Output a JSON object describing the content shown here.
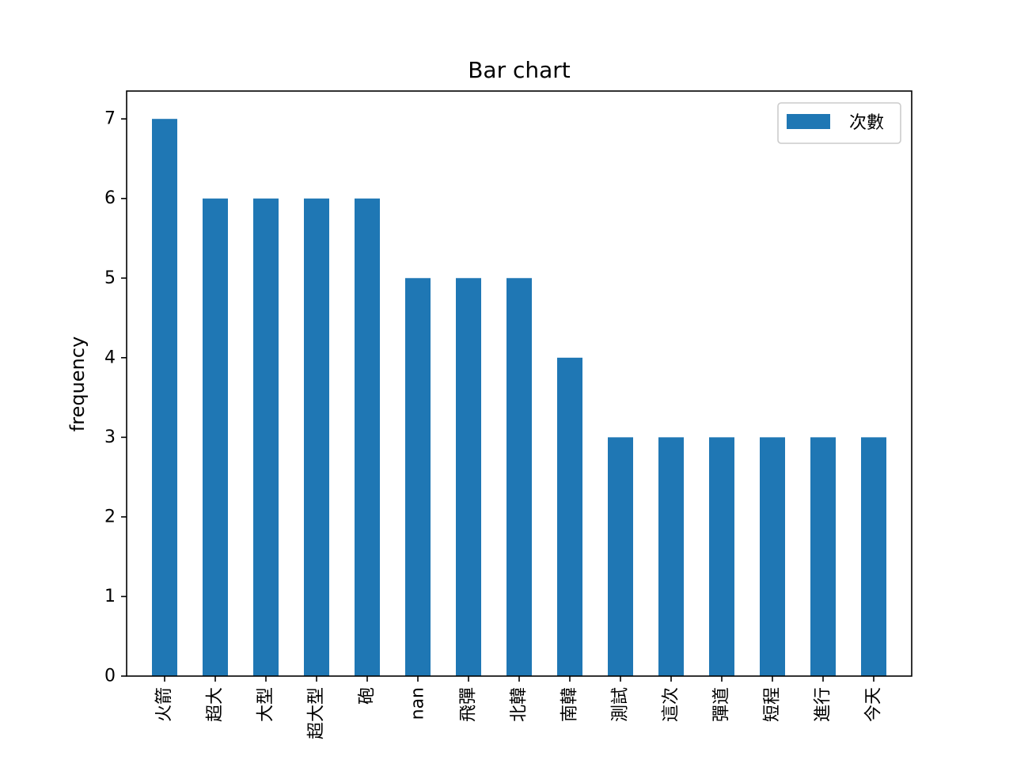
{
  "chart_data": {
    "type": "bar",
    "title": "Bar chart",
    "xlabel": "",
    "ylabel": "frequency",
    "categories": [
      "火箭",
      "超大",
      "大型",
      "超大型",
      "砲",
      "nan",
      "飛彈",
      "北韓",
      "南韓",
      "測試",
      "這次",
      "彈道",
      "短程",
      "進行",
      "今天"
    ],
    "series": [
      {
        "name": "次數",
        "values": [
          7,
          6,
          6,
          6,
          6,
          5,
          5,
          5,
          4,
          3,
          3,
          3,
          3,
          3,
          3
        ],
        "color": "#1f77b4"
      }
    ],
    "ylim": [
      0,
      7.35
    ],
    "yticks": [
      0,
      1,
      2,
      3,
      4,
      5,
      6,
      7
    ],
    "grid": false,
    "legend_position": "top-right"
  }
}
